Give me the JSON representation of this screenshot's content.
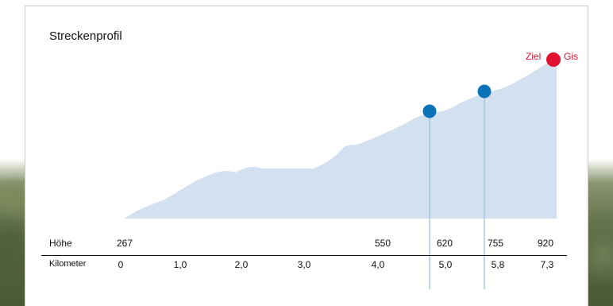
{
  "profile": {
    "title": "Streckenprofil",
    "finish_label": "Ziel",
    "finish_place": "Gis",
    "colors": {
      "area": "#d3e0ef",
      "marker": "#0a72b8",
      "marker_line": "#9cc3e6",
      "finish": "#e0122f"
    },
    "rows": {
      "height_label": "Höhe",
      "km_label": "Kilometer"
    },
    "heights": [
      "267",
      "550",
      "620",
      "755",
      "920"
    ],
    "kilometers": [
      "0",
      "1,0",
      "2,0",
      "3,0",
      "4,0",
      "5,0",
      "5,8",
      "7,3"
    ]
  }
}
